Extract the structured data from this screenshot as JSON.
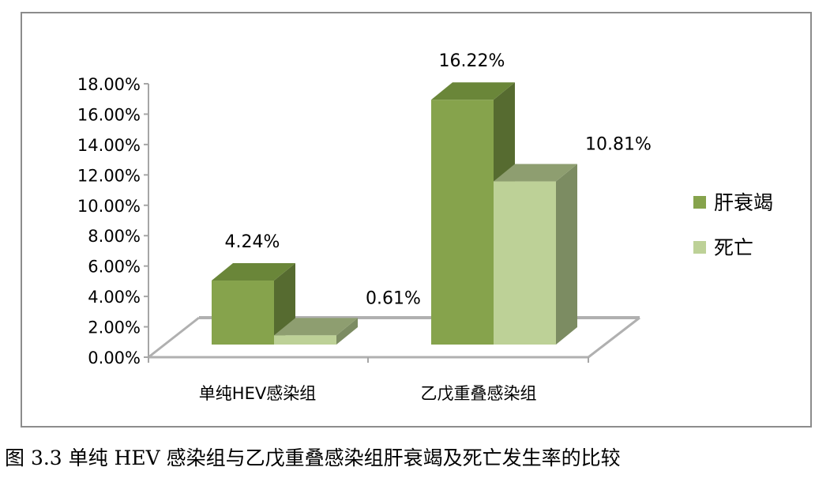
{
  "chart_data": {
    "type": "bar",
    "style": "3d-clustered-column",
    "categories": [
      "单纯HEV感染组",
      "乙戊重叠感染组"
    ],
    "series": [
      {
        "name": "肝衰竭",
        "values": [
          4.24,
          16.22
        ],
        "color": "#86a34c",
        "labels": [
          "4.24%",
          "16.22%"
        ]
      },
      {
        "name": "死亡",
        "values": [
          0.61,
          10.81
        ],
        "color": "#bdd197",
        "labels": [
          "0.61%",
          "10.81%"
        ]
      }
    ],
    "yticks": [
      "0.00%",
      "2.00%",
      "4.00%",
      "6.00%",
      "8.00%",
      "10.00%",
      "12.00%",
      "14.00%",
      "16.00%",
      "18.00%"
    ],
    "ylim": [
      0,
      18
    ],
    "unit": "%",
    "grid": false,
    "legend": "right"
  },
  "caption": "图 3.3  单纯 HEV 感染组与乙戊重叠感染组肝衰竭及死亡发生率的比较"
}
